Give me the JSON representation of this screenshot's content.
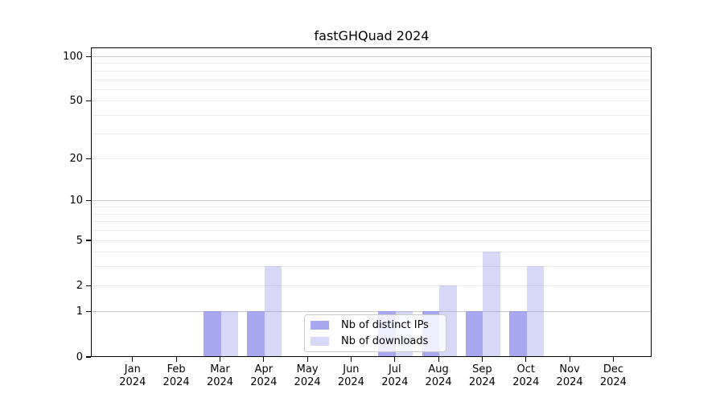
{
  "page": {
    "background": "#ffffff"
  },
  "chart_data": {
    "type": "bar",
    "title": "fastGHQuad 2024",
    "categories": [
      "Jan 2024",
      "Feb 2024",
      "Mar 2024",
      "Apr 2024",
      "May 2024",
      "Jun 2024",
      "Jul 2024",
      "Aug 2024",
      "Sep 2024",
      "Oct 2024",
      "Nov 2024",
      "Dec 2024"
    ],
    "series": [
      {
        "name": "Nb of distinct IPs",
        "values": [
          0,
          0,
          1,
          1,
          0,
          0,
          1,
          1,
          1,
          1,
          0,
          0
        ],
        "color": "rgba(139,139,236,0.75)"
      },
      {
        "name": "Nb of downloads",
        "values": [
          0,
          0,
          1,
          3,
          0,
          0,
          1,
          2,
          4,
          3,
          0,
          0
        ],
        "color": "rgba(139,139,236,0.35)"
      }
    ],
    "yscale": "log10(1+x)",
    "ylim": [
      0,
      100
    ],
    "y_tick_values": [
      0,
      1,
      2,
      5,
      10,
      20,
      50,
      100
    ],
    "y_tick_labels": [
      "0",
      "1",
      "2",
      "5",
      "10",
      "20",
      "50",
      "100"
    ],
    "major_gridlines": [
      1,
      10,
      100
    ],
    "minor_gridlines": [
      2,
      3,
      4,
      5,
      6,
      7,
      8,
      9,
      20,
      30,
      40,
      50,
      60,
      70,
      80,
      90
    ],
    "grid": true,
    "legend_position": "lower-center"
  },
  "colors": {
    "axis": "#000000",
    "major_grid": "#c8c8c8",
    "minor_grid": "#ececec",
    "text": "#000000",
    "legend_border": "#cccccc",
    "legend_bg": "rgba(255,255,255,0.8)"
  }
}
